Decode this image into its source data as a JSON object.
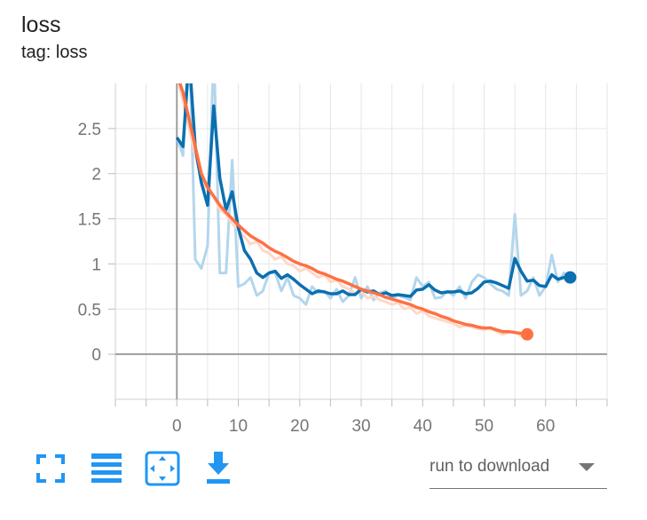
{
  "card": {
    "title": "loss",
    "tag": "tag: loss"
  },
  "toolbar": {
    "buttons": [
      {
        "icon": "fullscreen-icon"
      },
      {
        "icon": "list-icon"
      },
      {
        "icon": "fit-domain-icon"
      },
      {
        "icon": "download-icon"
      }
    ],
    "download_select": {
      "label": "run to download"
    },
    "accent": "#2196f3"
  },
  "chart_data": {
    "type": "line",
    "title": "loss",
    "xlabel": "",
    "ylabel": "",
    "xlim": [
      -10,
      70
    ],
    "ylim": [
      -0.5,
      3
    ],
    "xticks": [
      0,
      10,
      20,
      30,
      40,
      50,
      60
    ],
    "yticks": [
      0,
      0.5,
      1,
      1.5,
      2,
      2.5
    ],
    "grid": true,
    "series": [
      {
        "color": "#0b6fb0",
        "raw_color": "#b3d6ec",
        "x": [
          0,
          1,
          2,
          3,
          4,
          5,
          6,
          7,
          8,
          9,
          10,
          11,
          12,
          13,
          14,
          15,
          16,
          17,
          18,
          19,
          20,
          21,
          22,
          23,
          24,
          25,
          26,
          27,
          28,
          29,
          30,
          31,
          32,
          33,
          34,
          35,
          36,
          37,
          38,
          39,
          40,
          41,
          42,
          43,
          44,
          45,
          46,
          47,
          48,
          49,
          50,
          51,
          52,
          53,
          54,
          55,
          56,
          57,
          58,
          59,
          60,
          61,
          62,
          63,
          64
        ],
        "raw": [
          2.4,
          2.2,
          3.6,
          1.05,
          0.95,
          1.2,
          3.4,
          0.9,
          0.9,
          2.15,
          0.75,
          0.78,
          0.85,
          0.65,
          0.7,
          0.9,
          0.9,
          0.7,
          0.85,
          0.65,
          0.62,
          0.55,
          0.75,
          0.68,
          0.7,
          0.62,
          0.72,
          0.58,
          0.65,
          0.85,
          0.62,
          0.75,
          0.6,
          0.68,
          0.7,
          0.62,
          0.65,
          0.63,
          0.6,
          0.85,
          0.75,
          0.8,
          0.62,
          0.63,
          0.7,
          0.65,
          0.75,
          0.62,
          0.8,
          0.88,
          0.85,
          0.78,
          0.72,
          0.7,
          0.65,
          1.55,
          0.65,
          0.7,
          0.85,
          0.65,
          0.75,
          1.1,
          0.8,
          0.9,
          0.85
        ],
        "smoothed": [
          2.4,
          2.3,
          3.3,
          2.3,
          1.9,
          1.65,
          2.75,
          1.95,
          1.6,
          1.8,
          1.4,
          1.15,
          1.05,
          0.9,
          0.85,
          0.9,
          0.92,
          0.84,
          0.88,
          0.83,
          0.77,
          0.72,
          0.67,
          0.7,
          0.69,
          0.67,
          0.67,
          0.7,
          0.66,
          0.66,
          0.72,
          0.69,
          0.7,
          0.66,
          0.68,
          0.65,
          0.66,
          0.65,
          0.64,
          0.71,
          0.72,
          0.77,
          0.71,
          0.68,
          0.69,
          0.69,
          0.7,
          0.67,
          0.68,
          0.73,
          0.8,
          0.81,
          0.79,
          0.76,
          0.73,
          1.06,
          0.92,
          0.81,
          0.82,
          0.76,
          0.75,
          0.88,
          0.83,
          0.85,
          0.85
        ]
      },
      {
        "color": "#ff7043",
        "raw_color": "#ffd8c8",
        "x": [
          0,
          1,
          2,
          3,
          4,
          5,
          6,
          7,
          8,
          9,
          10,
          11,
          12,
          13,
          14,
          15,
          16,
          17,
          18,
          19,
          20,
          21,
          22,
          23,
          24,
          25,
          26,
          27,
          28,
          29,
          30,
          31,
          32,
          33,
          34,
          35,
          36,
          37,
          38,
          39,
          40,
          41,
          42,
          43,
          44,
          45,
          46,
          47,
          48,
          49,
          50,
          51,
          52,
          53,
          54,
          55,
          56,
          57
        ],
        "raw": [
          3.1,
          2.8,
          2.5,
          2.2,
          1.95,
          1.8,
          1.75,
          1.6,
          1.55,
          1.45,
          1.38,
          1.3,
          1.22,
          1.25,
          1.15,
          1.12,
          1.05,
          1.08,
          1.0,
          0.98,
          0.92,
          0.95,
          0.9,
          0.85,
          0.88,
          0.8,
          0.82,
          0.75,
          0.72,
          0.68,
          0.7,
          0.62,
          0.64,
          0.6,
          0.58,
          0.55,
          0.57,
          0.5,
          0.52,
          0.45,
          0.48,
          0.42,
          0.4,
          0.38,
          0.36,
          0.34,
          0.3,
          0.32,
          0.3,
          0.28,
          0.27,
          0.3,
          0.25,
          0.22,
          0.24,
          0.25,
          0.2,
          0.22
        ],
        "smoothed": [
          3.1,
          2.9,
          2.6,
          2.3,
          2.0,
          1.85,
          1.75,
          1.65,
          1.57,
          1.5,
          1.43,
          1.37,
          1.31,
          1.27,
          1.23,
          1.18,
          1.14,
          1.11,
          1.07,
          1.03,
          1.0,
          0.98,
          0.95,
          0.91,
          0.89,
          0.86,
          0.83,
          0.81,
          0.78,
          0.75,
          0.72,
          0.7,
          0.68,
          0.66,
          0.63,
          0.61,
          0.59,
          0.57,
          0.55,
          0.52,
          0.5,
          0.47,
          0.45,
          0.42,
          0.4,
          0.37,
          0.35,
          0.33,
          0.32,
          0.3,
          0.29,
          0.29,
          0.27,
          0.25,
          0.25,
          0.24,
          0.23,
          0.22
        ]
      }
    ]
  }
}
